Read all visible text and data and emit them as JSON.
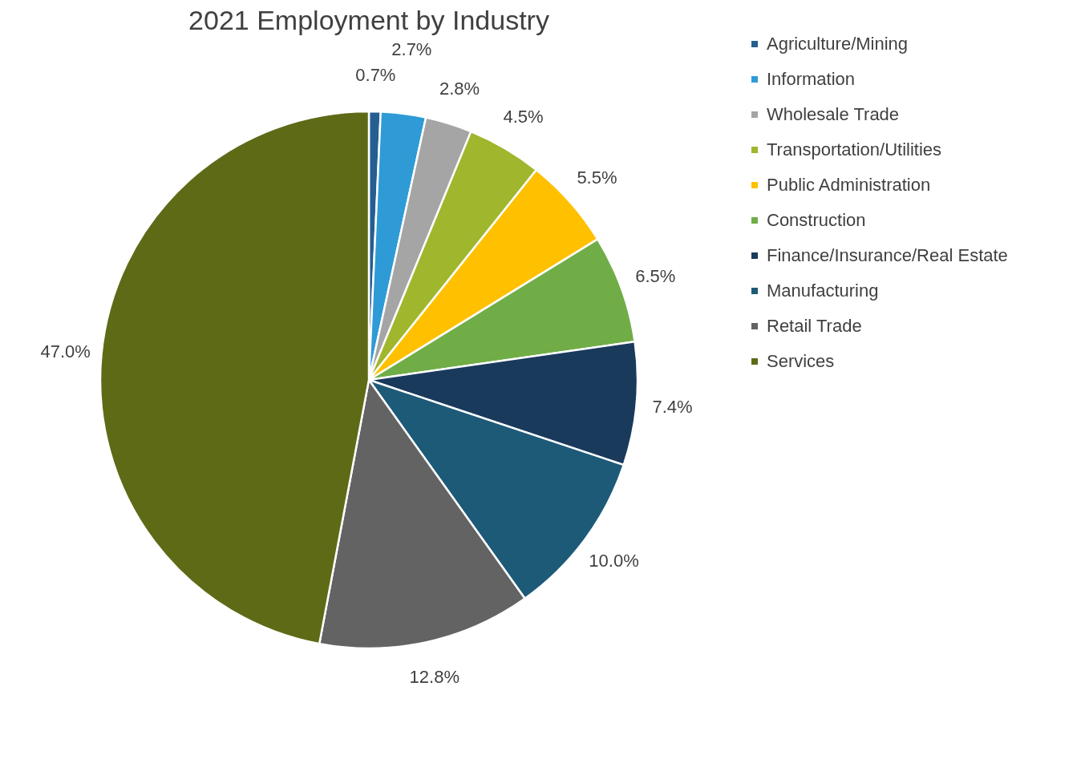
{
  "chart_data": {
    "type": "pie",
    "title": "2021 Employment by Industry",
    "categories": [
      "Agriculture/Mining",
      "Information",
      "Wholesale Trade",
      "Transportation/Utilities",
      "Public Administration",
      "Construction",
      "Finance/Insurance/Real Estate",
      "Manufacturing",
      "Retail Trade",
      "Services"
    ],
    "values": [
      0.7,
      2.7,
      2.8,
      4.5,
      5.5,
      6.5,
      7.4,
      10.0,
      12.8,
      47.0
    ],
    "value_labels": [
      "0.7%",
      "2.7%",
      "2.8%",
      "4.5%",
      "5.5%",
      "6.5%",
      "7.4%",
      "10.0%",
      "12.8%",
      "47.0%"
    ],
    "colors": [
      "#255e91",
      "#2e9bd6",
      "#a5a5a5",
      "#9fb62d",
      "#ffc000",
      "#70ad47",
      "#1a3a5c",
      "#1d5a78",
      "#636363",
      "#5f6a17"
    ],
    "legend": "right"
  }
}
